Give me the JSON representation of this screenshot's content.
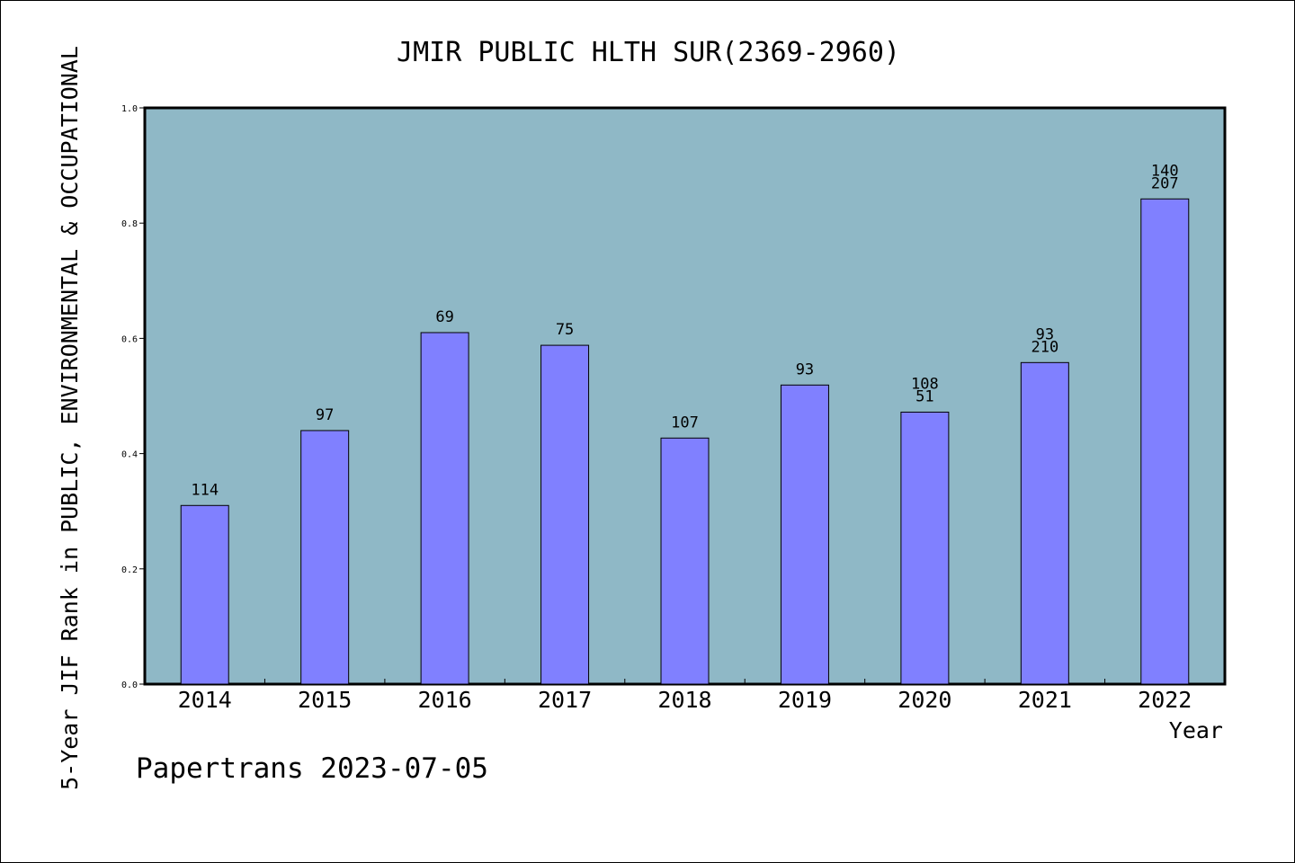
{
  "chart_data": {
    "type": "bar",
    "title": "JMIR PUBLIC HLTH SUR(2369-2960)",
    "xlabel": "Year",
    "ylabel": "5-Year JIF Rank in PUBLIC, ENVIRONMENTAL & OCCUPATIONAL",
    "ylim": [
      0.0,
      1.0
    ],
    "yticks": [
      "0.0",
      "0.2",
      "0.4",
      "0.6",
      "0.8",
      "1.0"
    ],
    "grid": false,
    "categories": [
      "2014",
      "2015",
      "2016",
      "2017",
      "2018",
      "2019",
      "2020",
      "2021",
      "2022"
    ],
    "values": [
      0.31,
      0.44,
      0.61,
      0.588,
      0.427,
      0.519,
      0.472,
      0.558,
      0.842
    ],
    "bar_labels": [
      [
        "114"
      ],
      [
        "97"
      ],
      [
        "69"
      ],
      [
        "75"
      ],
      [
        "107"
      ],
      [
        "93"
      ],
      [
        "108",
        "51"
      ],
      [
        "93",
        "210"
      ],
      [
        "140",
        "207"
      ]
    ],
    "colors": {
      "plot_background": "#8fb8c6",
      "bar_fill": "#8080ff",
      "bar_stroke": "#000000"
    }
  },
  "footer": {
    "credit": "Papertrans 2023-07-05"
  }
}
